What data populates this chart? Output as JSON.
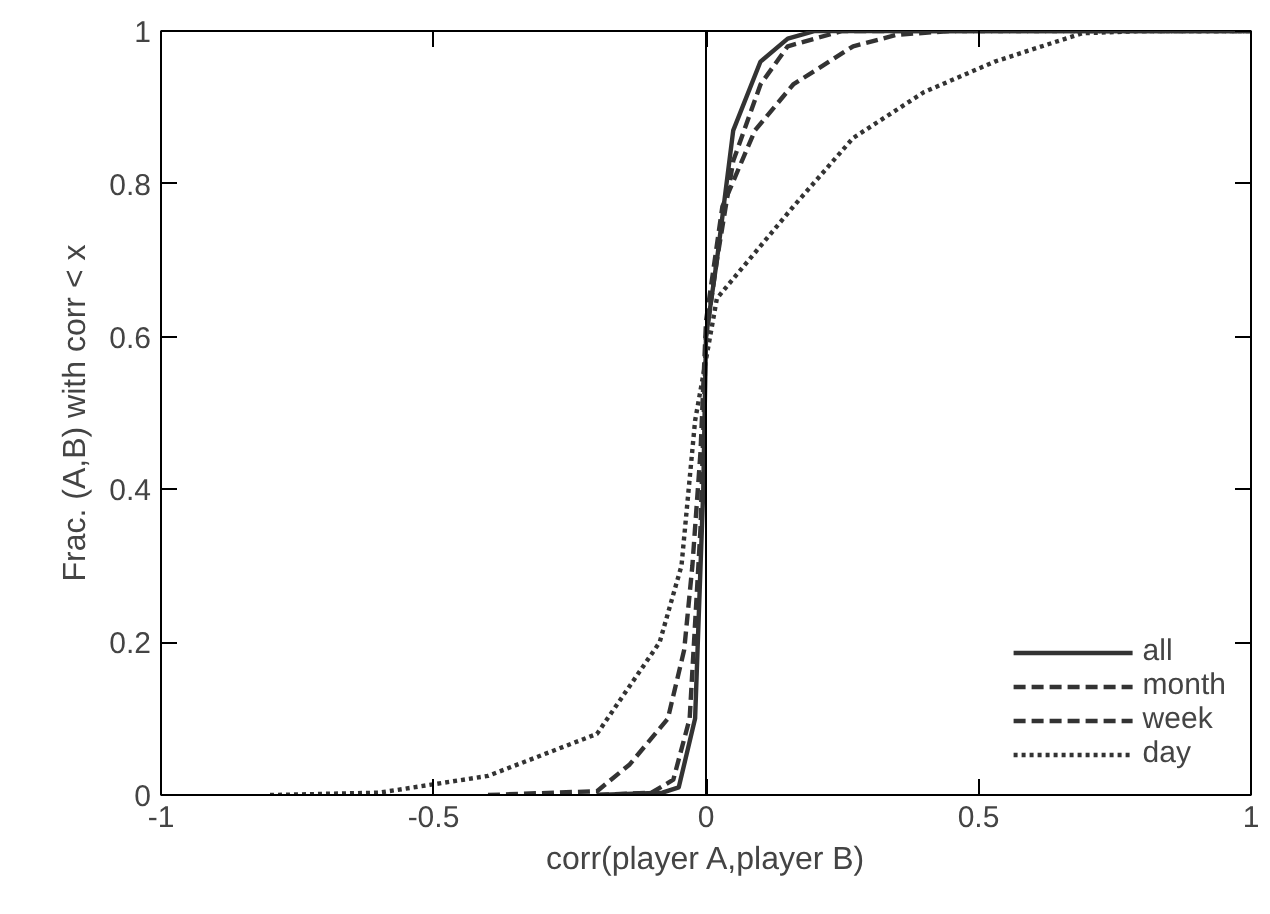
{
  "chart_data": {
    "type": "line",
    "xlabel": "corr(player A,player B)",
    "ylabel": "Frac. (A,B) with corr < x",
    "xlim": [
      -1,
      1
    ],
    "ylim": [
      0,
      1
    ],
    "xticks": [
      -1,
      -0.5,
      0,
      0.5,
      1
    ],
    "yticks": [
      0,
      0.2,
      0.4,
      0.6,
      0.8,
      1
    ],
    "grid": false,
    "legend": "bottom right",
    "marker": "none",
    "ref_lines": [
      {
        "axis": "x",
        "value": 0,
        "color": "#000000",
        "line_style": "solid"
      }
    ],
    "series": [
      {
        "name": "all",
        "color": "#333333",
        "line_style": "solid",
        "x": [
          -0.2,
          -0.08,
          -0.05,
          -0.02,
          -0.005,
          0,
          0.02,
          0.05,
          0.1,
          0.15,
          0.2,
          1
        ],
        "values": [
          0,
          0.003,
          0.01,
          0.1,
          0.4,
          0.6,
          0.7,
          0.87,
          0.96,
          0.99,
          1,
          1
        ]
      },
      {
        "name": "month",
        "color": "#333333",
        "line_style": "dashed",
        "x": [
          -0.2,
          -0.1,
          -0.06,
          -0.03,
          -0.01,
          0,
          0.02,
          0.05,
          0.1,
          0.15,
          0.25,
          1
        ],
        "values": [
          0,
          0.003,
          0.02,
          0.1,
          0.35,
          0.6,
          0.7,
          0.83,
          0.93,
          0.98,
          1,
          1
        ]
      },
      {
        "name": "week",
        "color": "#333333",
        "line_style": "dashed",
        "x": [
          -0.4,
          -0.2,
          -0.14,
          -0.07,
          -0.04,
          -0.025,
          -0.01,
          0,
          0.03,
          0.09,
          0.16,
          0.27,
          0.35,
          0.45,
          1
        ],
        "values": [
          0,
          0.005,
          0.04,
          0.1,
          0.19,
          0.3,
          0.45,
          0.62,
          0.77,
          0.87,
          0.93,
          0.98,
          0.995,
          1,
          1
        ]
      },
      {
        "name": "day",
        "color": "#333333",
        "line_style": "dotted",
        "x": [
          -0.8,
          -0.6,
          -0.4,
          -0.2,
          -0.085,
          -0.045,
          -0.02,
          0.02,
          0.16,
          0.27,
          0.4,
          0.53,
          0.69,
          0.8,
          1
        ],
        "values": [
          0,
          0.003,
          0.025,
          0.08,
          0.2,
          0.3,
          0.49,
          0.65,
          0.77,
          0.86,
          0.92,
          0.96,
          0.997,
          1,
          1
        ]
      }
    ]
  }
}
